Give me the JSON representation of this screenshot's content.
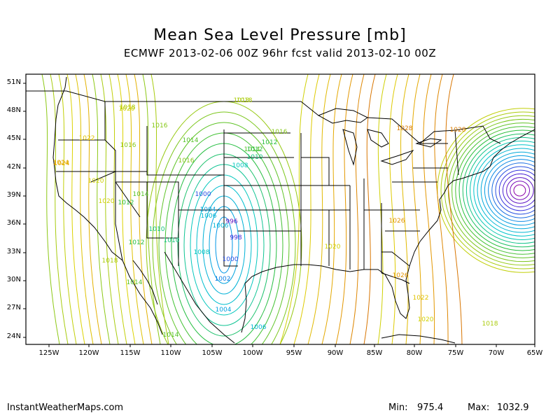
{
  "title": "Mean Sea Level Pressure [mb]",
  "subtitle": "ECMWF 2013-02-06 00Z 96hr fcst valid 2013-02-10 00Z",
  "lat_labels": [
    "51N",
    "48N",
    "45N",
    "42N",
    "39N",
    "36N",
    "33N",
    "30N",
    "27N",
    "24N"
  ],
  "lon_labels": [
    "125W",
    "120W",
    "115W",
    "110W",
    "105W",
    "100W",
    "95W",
    "90W",
    "85W",
    "80W",
    "75W",
    "70W",
    "65W"
  ],
  "isobar_labels": [
    "1018",
    "1020",
    "1022",
    "1024",
    "1020",
    "1020",
    "1018",
    "1016",
    "1016",
    "1014",
    "1016",
    "1014",
    "1012",
    "1014",
    "1012",
    "1010",
    "1012",
    "1010",
    "1008",
    "1006",
    "1000",
    "1004",
    "1006",
    "996",
    "998",
    "1012",
    "1010",
    "1008",
    "1000",
    "1002",
    "1004",
    "1006",
    "1014",
    "1018",
    "1014",
    "1016",
    "1018",
    "1020",
    "1024",
    "1026",
    "1028",
    "1028",
    "1026",
    "1022",
    "1020",
    "1018"
  ],
  "footer": {
    "source": "InstantWeatherMaps.com",
    "min_label": "Min:",
    "min_value": "975.4",
    "max_label": "Max:",
    "max_value": "1032.9"
  },
  "colors": {
    "low": "#6a00a8",
    "high": "#d07000",
    "border": "#000000"
  }
}
